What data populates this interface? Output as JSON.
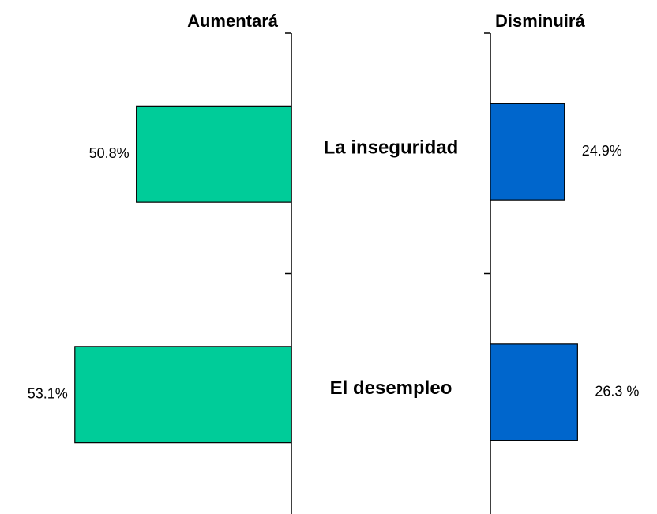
{
  "chart_data": {
    "type": "bar",
    "orientation": "horizontal",
    "categories": [
      "La inseguridad",
      "El desempleo"
    ],
    "series": [
      {
        "name": "Aumentará",
        "color": "#00cc99",
        "direction": "reversed",
        "xlim": [
          45,
          55.9
        ],
        "values": [
          50.8,
          53.1
        ],
        "value_labels": [
          "50.8%",
          "53.1%"
        ]
      },
      {
        "name": "Disminuirá",
        "color": "#0066cc",
        "direction": "normal",
        "xlim": [
          17,
          34.7
        ],
        "values": [
          24.9,
          26.3
        ],
        "value_labels": [
          "24.9%",
          "26.3 %"
        ]
      }
    ]
  }
}
